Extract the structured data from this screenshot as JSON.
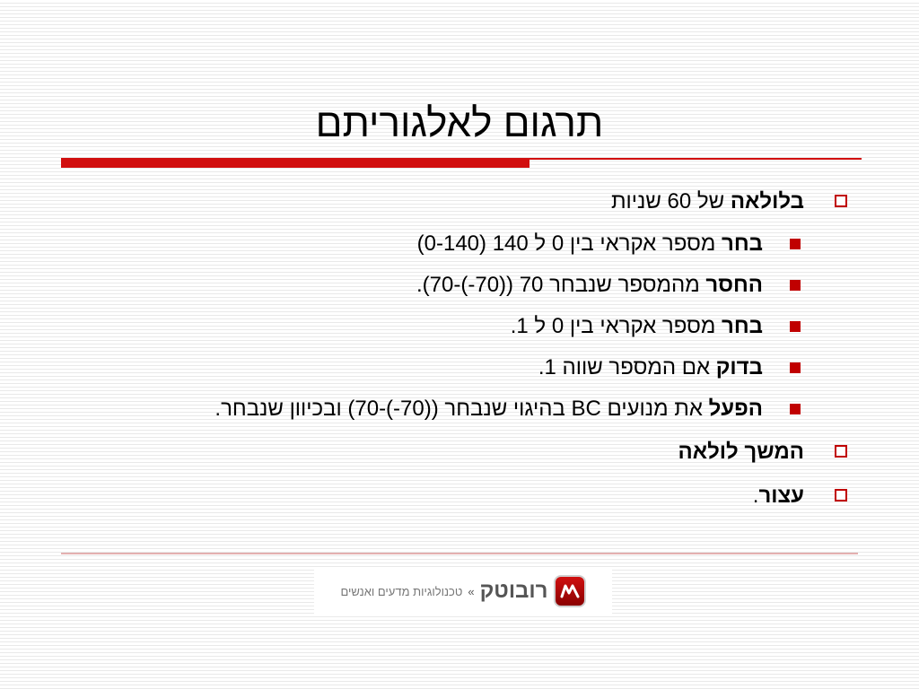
{
  "slide": {
    "title": "תרגום לאלגוריתם"
  },
  "colors": {
    "accent": "#c00000",
    "rule_thick": "#d10f0f",
    "rule_thin": "#d10f0f"
  },
  "items": [
    {
      "bold": "בלולאה",
      "text": " של 60 שניות"
    },
    {
      "bold": "בחר",
      "text": " מספר אקראי בין 0 ל 140 (0-140)"
    },
    {
      "bold": "החסר",
      "text": " מהמספר שנבחר 70 ((70-)-70)."
    },
    {
      "bold": "בחר",
      "text": " מספר אקראי בין 0 ל 1."
    },
    {
      "bold": "בדוק",
      "text": " אם המספר שווה 1."
    },
    {
      "bold": "הפעל",
      "text": " את מנועים BC בהיגוי שנבחר ((70-)-70) ובכיוון שנבחר."
    },
    {
      "bold": "המשך לולאה",
      "text": ""
    },
    {
      "bold": "עצור",
      "text": "."
    }
  ],
  "logo": {
    "brand_name": "רובוטק",
    "chevrons": "»",
    "tagline": "טכנולוגיות מדעים ואנשים",
    "mark_icon": "robotek-logo-icon"
  }
}
